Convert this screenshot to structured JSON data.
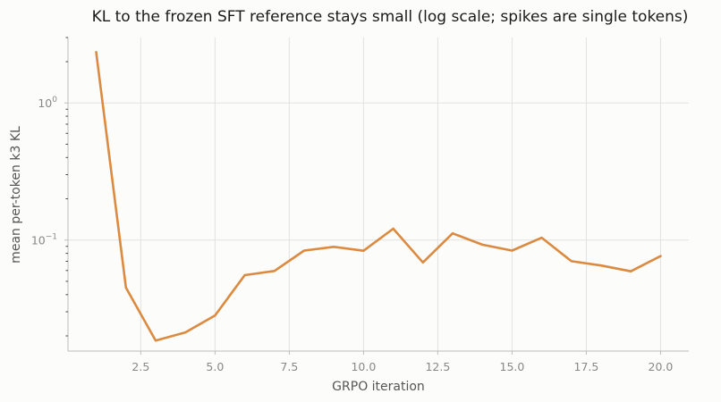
{
  "chart_data": {
    "type": "line",
    "title": "KL to the frozen SFT reference stays small (log scale; spikes are single tokens)",
    "xlabel": "GRPO iteration",
    "ylabel": "mean per-token k3 KL",
    "xlim": [
      0.05,
      20.95
    ],
    "ylim": [
      0.0155,
      3.0
    ],
    "yscale": "log",
    "grid": true,
    "x_ticks": [
      2.5,
      5.0,
      7.5,
      10.0,
      12.5,
      15.0,
      17.5,
      20.0
    ],
    "x_tick_labels": [
      "2.5",
      "5.0",
      "7.5",
      "10.0",
      "12.5",
      "15.0",
      "17.5",
      "20.0"
    ],
    "y_ticks": [
      {
        "value": 1,
        "base": "10",
        "exp": "0"
      },
      {
        "value": 0.1,
        "base": "10",
        "exp": "−1"
      }
    ],
    "series": [
      {
        "color": "#dc8a3f",
        "x": [
          1,
          2,
          3,
          4,
          5,
          6,
          7,
          8,
          9,
          10,
          11,
          12,
          13,
          14,
          15,
          16,
          17,
          18,
          19,
          20
        ],
        "y": [
          2.35,
          0.045,
          0.0185,
          0.0212,
          0.0282,
          0.0555,
          0.0595,
          0.0838,
          0.0893,
          0.0835,
          0.121,
          0.0686,
          0.112,
          0.0925,
          0.0838,
          0.104,
          0.0701,
          0.0652,
          0.0592,
          0.0765
        ]
      }
    ]
  }
}
